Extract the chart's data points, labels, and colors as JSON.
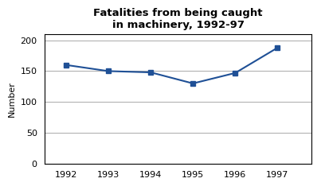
{
  "title": "Fatalities from being caught\nin machinery, 1992-97",
  "years": [
    1992,
    1993,
    1994,
    1995,
    1996,
    1997
  ],
  "values": [
    160,
    150,
    148,
    130,
    147,
    188
  ],
  "line_color": "#1F5096",
  "marker": "s",
  "marker_color": "#1F5096",
  "marker_size": 5,
  "ylabel": "Number",
  "ylim": [
    0,
    210
  ],
  "yticks": [
    0,
    50,
    100,
    150,
    200
  ],
  "xlim": [
    1991.5,
    1997.8
  ],
  "grid_color": "#aaaaaa",
  "bg_color": "#ffffff",
  "title_fontsize": 9.5,
  "axis_fontsize": 8,
  "ylabel_fontsize": 8,
  "linewidth": 1.5
}
